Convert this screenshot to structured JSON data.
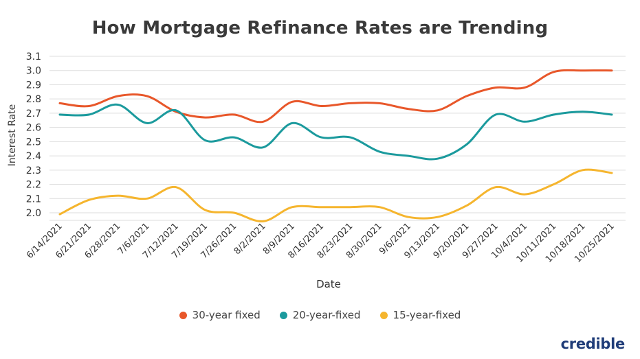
{
  "colors": {
    "thirty": "#e8572a",
    "twenty": "#1b9a9d",
    "fifteen": "#f5b52e",
    "grid": "#dedede",
    "text": "#333333",
    "brand": "#1f3c78"
  },
  "brand_text": "credible",
  "chart_data": {
    "type": "line",
    "title": "How Mortgage Refinance Rates are Trending",
    "xlabel": "Date",
    "ylabel": "Interest Rate",
    "ylim": [
      1.95,
      3.1
    ],
    "yticks": [
      "2.0",
      "2.1",
      "2.2",
      "2.3",
      "2.4",
      "2.5",
      "2.6",
      "2.7",
      "2.8",
      "2.9",
      "3.0",
      "3.1"
    ],
    "grid": true,
    "legend_position": "bottom",
    "categories": [
      "6/14/2021",
      "6/21/2021",
      "6/28/2021",
      "7/6/2021",
      "7/12/2021",
      "7/19/2021",
      "7/26/2021",
      "8/2/2021",
      "8/9/2021",
      "8/16/2021",
      "8/23/2021",
      "8/30/2021",
      "9/6/2021",
      "9/13/2021",
      "9/20/2021",
      "9/27/2021",
      "10/4/2021",
      "10/11/2021",
      "10/18/2021",
      "10/25/2021"
    ],
    "series": [
      {
        "name": "30-year fixed",
        "color": "#e8572a",
        "values": [
          2.77,
          2.75,
          2.82,
          2.82,
          2.71,
          2.67,
          2.69,
          2.64,
          2.78,
          2.75,
          2.77,
          2.77,
          2.73,
          2.72,
          2.82,
          2.88,
          2.88,
          2.99,
          3.0,
          3.0
        ]
      },
      {
        "name": "20-year-fixed",
        "color": "#1b9a9d",
        "values": [
          2.69,
          2.69,
          2.76,
          2.63,
          2.72,
          2.51,
          2.53,
          2.46,
          2.63,
          2.53,
          2.53,
          2.43,
          2.4,
          2.38,
          2.48,
          2.69,
          2.64,
          2.69,
          2.71,
          2.69
        ]
      },
      {
        "name": "15-year-fixed",
        "color": "#f5b52e",
        "values": [
          1.99,
          2.09,
          2.12,
          2.1,
          2.18,
          2.02,
          2.0,
          1.94,
          2.04,
          2.04,
          2.04,
          2.04,
          1.97,
          1.97,
          2.05,
          2.18,
          2.13,
          2.2,
          2.3,
          2.28
        ]
      }
    ]
  }
}
